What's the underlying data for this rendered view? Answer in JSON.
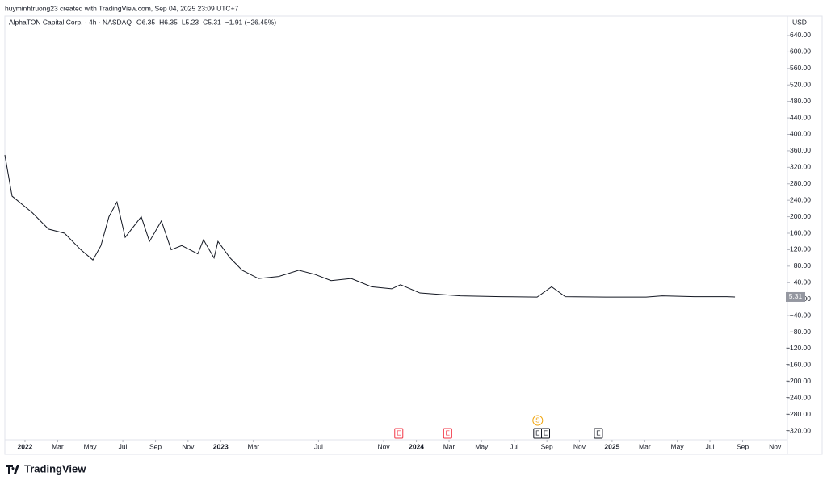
{
  "header": {
    "credit": "huyminhtruong23 created with TradingView.com, Sep 04, 2025 23:09 UTC+7",
    "logo": "TradingView"
  },
  "chart_data": {
    "type": "line",
    "title": "AlphaTON Capital Corp. · 4h · NASDAQ",
    "legend_items": [
      "O6.35",
      "H6.35",
      "L5.23",
      "C5.31",
      "−1.91 (−26.45%)"
    ],
    "currency": "USD",
    "color": "#131722",
    "x": [
      2021.897,
      2021.934,
      2022.037,
      2022.12,
      2022.202,
      2022.285,
      2022.347,
      2022.388,
      2022.429,
      2022.47,
      2022.512,
      2022.594,
      2022.636,
      2022.697,
      2022.747,
      2022.801,
      2022.883,
      2022.912,
      2022.966,
      2022.986,
      2023.048,
      2023.11,
      2023.193,
      2023.296,
      2023.399,
      2023.482,
      2023.564,
      2023.667,
      2023.771,
      2023.874,
      2023.919,
      2024.018,
      2024.101,
      2024.225,
      2024.431,
      2024.617,
      2024.691,
      2024.761,
      2024.967,
      2025.174,
      2025.256,
      2025.421,
      2025.586,
      2025.628
    ],
    "values": [
      350,
      250,
      210,
      170,
      160,
      120,
      95,
      130,
      200,
      236,
      150,
      200,
      140,
      190,
      120,
      130,
      110,
      144,
      100,
      140,
      100,
      70,
      50,
      55,
      70,
      60,
      45,
      50,
      30,
      25,
      35,
      15,
      12,
      8,
      6,
      5,
      30,
      6,
      5,
      5,
      8,
      6,
      6,
      5.31
    ],
    "last_price": 5.31,
    "xlim": [
      2021.897,
      2025.896
    ],
    "xticks": [
      {
        "value": 2022,
        "label": "2022"
      },
      {
        "value": 2022.167,
        "label": "Mar"
      },
      {
        "value": 2022.333,
        "label": "May"
      },
      {
        "value": 2022.5,
        "label": "Jul"
      },
      {
        "value": 2022.667,
        "label": "Sep"
      },
      {
        "value": 2022.833,
        "label": "Nov"
      },
      {
        "value": 2023,
        "label": "2023"
      },
      {
        "value": 2023.167,
        "label": "Mar"
      },
      {
        "value": 2023.5,
        "label": "Jul"
      },
      {
        "value": 2023.833,
        "label": "Nov"
      },
      {
        "value": 2024,
        "label": "2024"
      },
      {
        "value": 2024.167,
        "label": "Mar"
      },
      {
        "value": 2024.333,
        "label": "May"
      },
      {
        "value": 2024.5,
        "label": "Jul"
      },
      {
        "value": 2024.667,
        "label": "Sep"
      },
      {
        "value": 2024.833,
        "label": "Nov"
      },
      {
        "value": 2025,
        "label": "2025"
      },
      {
        "value": 2025.167,
        "label": "Mar"
      },
      {
        "value": 2025.333,
        "label": "May"
      },
      {
        "value": 2025.5,
        "label": "Jul"
      },
      {
        "value": 2025.667,
        "label": "Sep"
      },
      {
        "value": 2025.833,
        "label": "Nov"
      }
    ],
    "ylim": [
      -341.5,
      687
    ],
    "yticks": [
      {
        "value": 640,
        "label": "640.00"
      },
      {
        "value": 600,
        "label": "600.00"
      },
      {
        "value": 560,
        "label": "560.00"
      },
      {
        "value": 520,
        "label": "520.00"
      },
      {
        "value": 480,
        "label": "480.00"
      },
      {
        "value": 440,
        "label": "440.00"
      },
      {
        "value": 400,
        "label": "400.00"
      },
      {
        "value": 360,
        "label": "360.00"
      },
      {
        "value": 320,
        "label": "320.00"
      },
      {
        "value": 280,
        "label": "280.00"
      },
      {
        "value": 240,
        "label": "240.00"
      },
      {
        "value": 200,
        "label": "200.00"
      },
      {
        "value": 160,
        "label": "160.00"
      },
      {
        "value": 120,
        "label": "120.00"
      },
      {
        "value": 80,
        "label": "80.00"
      },
      {
        "value": 40,
        "label": "40.00"
      },
      {
        "value": 0,
        "label": "0.00"
      },
      {
        "value": -40,
        "label": "−40.00"
      },
      {
        "value": -80,
        "label": "−80.00"
      },
      {
        "value": -120,
        "label": "−120.00"
      },
      {
        "value": -160,
        "label": "−160.00"
      },
      {
        "value": -200,
        "label": "−200.00"
      },
      {
        "value": -240,
        "label": "−240.00"
      },
      {
        "value": -280,
        "label": "−280.00"
      },
      {
        "value": -320,
        "label": "−320.00"
      }
    ],
    "events": [
      {
        "x": 2023.91,
        "label": "E",
        "color": "#f23645"
      },
      {
        "x": 2024.16,
        "label": "E",
        "color": "#f23645"
      },
      {
        "x": 2024.62,
        "label": "E",
        "color": "#131722"
      },
      {
        "x": 2024.66,
        "label": "E",
        "color": "#131722"
      },
      {
        "x": 2024.93,
        "label": "E",
        "color": "#131722"
      },
      {
        "x": 2024.62,
        "label": "S",
        "color": "#f0a30a"
      }
    ]
  }
}
